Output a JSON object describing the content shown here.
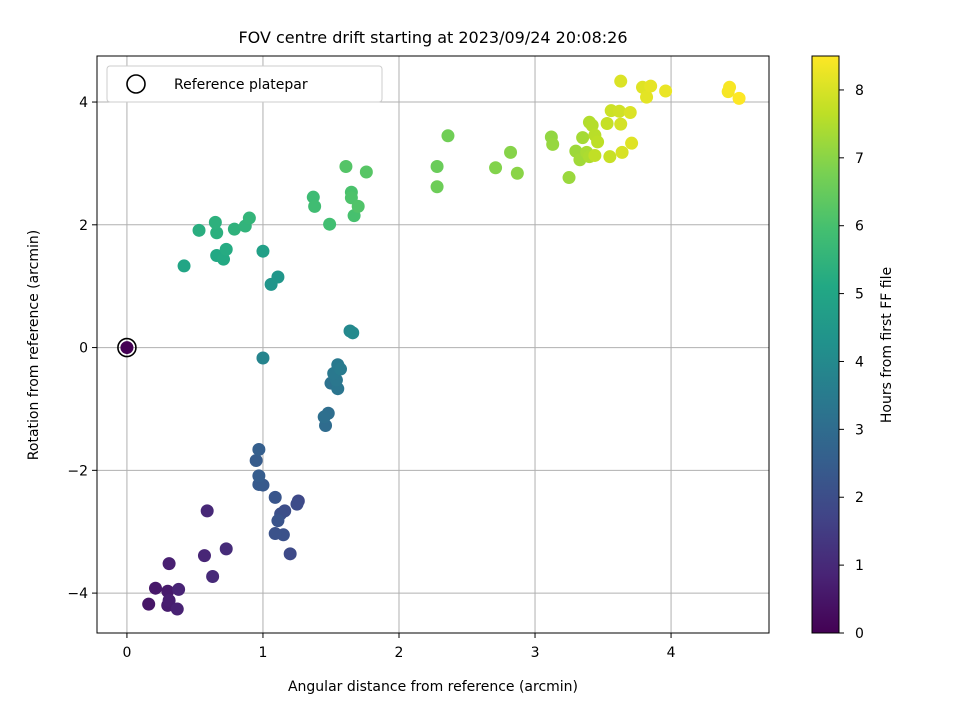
{
  "chart_data": {
    "type": "scatter",
    "title": "FOV centre drift starting at 2023/09/24 20:08:26",
    "xlabel": "Angular distance from reference (arcmin)",
    "ylabel": "Rotation from reference (arcmin)",
    "xlim": [
      -0.22,
      4.72
    ],
    "ylim": [
      -4.65,
      4.75
    ],
    "xticks": [
      0,
      1,
      2,
      3,
      4
    ],
    "xtick_labels": [
      "0",
      "1",
      "2",
      "3",
      "4"
    ],
    "yticks": [
      -4,
      -2,
      0,
      2,
      4
    ],
    "ytick_labels": [
      "−4",
      "−2",
      "0",
      "2",
      "4"
    ],
    "grid": true,
    "legend": {
      "location": "upper left",
      "entries": [
        "Reference platepar"
      ]
    },
    "reference_point": {
      "x": 0.0,
      "y": 0.0,
      "marker": "open-circle"
    },
    "colorbar": {
      "label": "Hours from first FF file",
      "colormap": "viridis",
      "range": [
        0,
        8.5
      ],
      "ticks": [
        0,
        1,
        2,
        3,
        4,
        5,
        6,
        7,
        8
      ],
      "tick_labels": [
        "0",
        "1",
        "2",
        "3",
        "4",
        "5",
        "6",
        "7",
        "8"
      ]
    },
    "series": [
      {
        "values_are": "[x, y, hours]",
        "points": [
          [
            0.0,
            0.0,
            0.0
          ],
          [
            0.16,
            -4.18,
            0.5
          ],
          [
            0.21,
            -3.92,
            0.55
          ],
          [
            0.3,
            -3.97,
            0.6
          ],
          [
            0.3,
            -4.2,
            0.65
          ],
          [
            0.31,
            -4.12,
            0.7
          ],
          [
            0.31,
            -3.52,
            0.75
          ],
          [
            0.37,
            -4.26,
            0.8
          ],
          [
            0.38,
            -3.94,
            0.85
          ],
          [
            0.57,
            -3.39,
            0.9
          ],
          [
            0.59,
            -2.66,
            0.95
          ],
          [
            0.63,
            -3.73,
            1.0
          ],
          [
            0.73,
            -3.28,
            1.05
          ],
          [
            1.26,
            -2.5,
            1.85
          ],
          [
            1.2,
            -3.36,
            1.9
          ],
          [
            1.25,
            -2.55,
            1.95
          ],
          [
            1.16,
            -2.66,
            2.0
          ],
          [
            1.13,
            -2.71,
            2.05
          ],
          [
            1.15,
            -3.05,
            2.1
          ],
          [
            1.09,
            -3.03,
            2.15
          ],
          [
            1.11,
            -2.82,
            2.2
          ],
          [
            1.09,
            -2.44,
            2.25
          ],
          [
            1.0,
            -2.24,
            2.35
          ],
          [
            0.97,
            -2.23,
            2.4
          ],
          [
            0.95,
            -1.84,
            2.45
          ],
          [
            0.97,
            -2.09,
            2.5
          ],
          [
            0.97,
            -1.66,
            2.55
          ],
          [
            1.46,
            -1.27,
            3.0
          ],
          [
            1.48,
            -1.07,
            3.05
          ],
          [
            1.45,
            -1.13,
            3.1
          ],
          [
            1.5,
            -0.58,
            3.2
          ],
          [
            1.55,
            -0.67,
            3.3
          ],
          [
            1.54,
            -0.53,
            3.35
          ],
          [
            1.52,
            -0.42,
            3.4
          ],
          [
            1.55,
            -0.28,
            3.45
          ],
          [
            1.57,
            -0.35,
            3.5
          ],
          [
            1.0,
            -0.17,
            3.8
          ],
          [
            1.64,
            0.27,
            3.95
          ],
          [
            1.66,
            0.24,
            4.0
          ],
          [
            1.06,
            1.03,
            4.4
          ],
          [
            1.11,
            1.15,
            4.45
          ],
          [
            0.42,
            1.33,
            5.0
          ],
          [
            1.0,
            1.57,
            4.8
          ],
          [
            0.66,
            1.5,
            5.1
          ],
          [
            0.71,
            1.44,
            5.15
          ],
          [
            0.73,
            1.6,
            5.2
          ],
          [
            0.53,
            1.91,
            5.3
          ],
          [
            0.66,
            1.87,
            5.35
          ],
          [
            0.65,
            2.04,
            5.4
          ],
          [
            0.79,
            1.93,
            5.45
          ],
          [
            0.87,
            1.98,
            5.5
          ],
          [
            0.9,
            2.11,
            5.55
          ],
          [
            1.37,
            2.45,
            5.8
          ],
          [
            1.38,
            2.3,
            5.85
          ],
          [
            1.49,
            2.01,
            5.9
          ],
          [
            1.67,
            2.15,
            6.0
          ],
          [
            1.65,
            2.53,
            6.05
          ],
          [
            1.65,
            2.44,
            6.1
          ],
          [
            1.7,
            2.3,
            6.15
          ],
          [
            1.61,
            2.95,
            6.2
          ],
          [
            1.76,
            2.86,
            6.25
          ],
          [
            2.28,
            2.95,
            6.55
          ],
          [
            2.28,
            2.62,
            6.6
          ],
          [
            2.36,
            3.45,
            6.65
          ],
          [
            2.71,
            2.93,
            6.9
          ],
          [
            2.82,
            3.18,
            6.95
          ],
          [
            2.87,
            2.84,
            7.0
          ],
          [
            3.12,
            3.43,
            7.1
          ],
          [
            3.13,
            3.31,
            7.15
          ],
          [
            3.25,
            2.77,
            7.2
          ],
          [
            3.3,
            3.2,
            7.25
          ],
          [
            3.33,
            3.06,
            7.3
          ],
          [
            3.35,
            3.42,
            7.35
          ],
          [
            3.38,
            3.18,
            7.4
          ],
          [
            3.4,
            3.11,
            7.45
          ],
          [
            3.4,
            3.67,
            7.5
          ],
          [
            3.42,
            3.62,
            7.55
          ],
          [
            3.44,
            3.46,
            7.6
          ],
          [
            3.46,
            3.35,
            7.65
          ],
          [
            3.44,
            3.13,
            7.7
          ],
          [
            3.53,
            3.65,
            7.75
          ],
          [
            3.55,
            3.11,
            7.8
          ],
          [
            3.56,
            3.86,
            7.85
          ],
          [
            3.62,
            3.85,
            7.9
          ],
          [
            3.63,
            3.64,
            7.95
          ],
          [
            3.64,
            3.18,
            8.0
          ],
          [
            3.7,
            3.83,
            8.05
          ],
          [
            3.71,
            3.33,
            8.1
          ],
          [
            3.63,
            4.34,
            8.05
          ],
          [
            3.79,
            4.24,
            8.1
          ],
          [
            3.82,
            4.08,
            8.15
          ],
          [
            3.85,
            4.26,
            8.2
          ],
          [
            3.96,
            4.18,
            8.25
          ],
          [
            4.42,
            4.17,
            8.4
          ],
          [
            4.43,
            4.24,
            8.42
          ],
          [
            4.5,
            4.06,
            8.5
          ]
        ]
      }
    ]
  }
}
